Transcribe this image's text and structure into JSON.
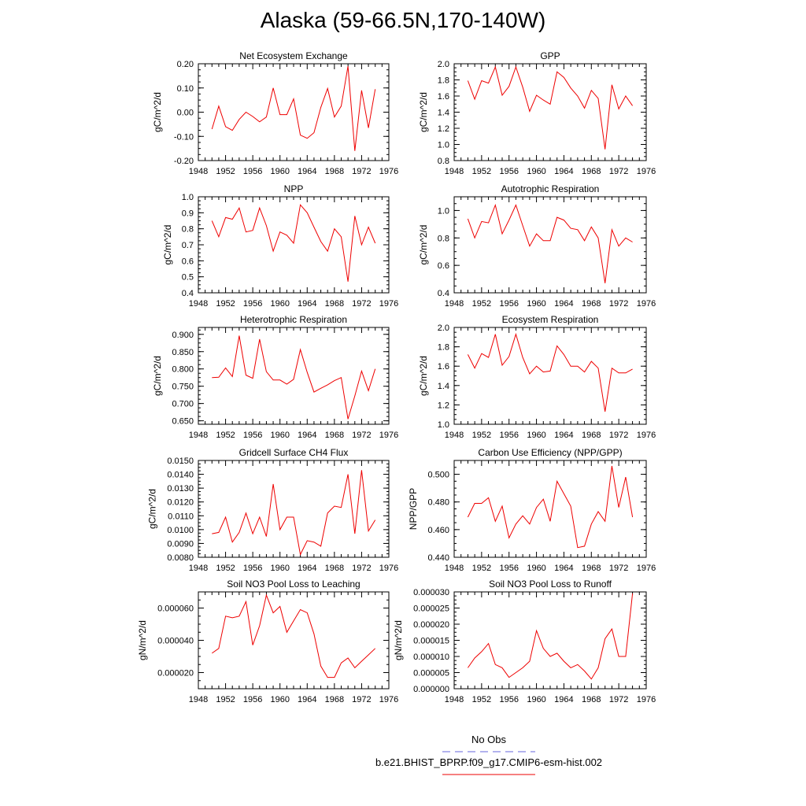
{
  "figure": {
    "title": "Alaska (59-66.5N,170-140W)"
  },
  "legend": {
    "items": [
      {
        "label": "No Obs",
        "color": "#6666dd",
        "style": "dashed"
      },
      {
        "label": "b.e21.BHIST_BPRP.f09_g17.CMIP6-esm-hist.002",
        "color": "#ee0000",
        "style": "solid"
      }
    ]
  },
  "chart_data": [
    {
      "type": "line",
      "title": "Net Ecosystem Exchange",
      "xlabel": "",
      "ylabel": "gC/m^2/d",
      "xlim": [
        1948,
        1976
      ],
      "ylim": [
        -0.2,
        0.2
      ],
      "xticks": [
        "1948",
        "1952",
        "1956",
        "1960",
        "1964",
        "1968",
        "1972",
        "1976"
      ],
      "yticks": [
        "-0.20",
        "-0.10",
        "0.00",
        "0.10",
        "0.20"
      ],
      "ytick_values": [
        -0.2,
        -0.1,
        0,
        0.1,
        0.2
      ],
      "x": [
        1950,
        1951,
        1952,
        1953,
        1954,
        1955,
        1956,
        1957,
        1958,
        1959,
        1960,
        1961,
        1962,
        1963,
        1964,
        1965,
        1966,
        1967,
        1968,
        1969,
        1970,
        1971,
        1972,
        1973,
        1974
      ],
      "series": [
        {
          "values": [
            -0.07,
            0.025,
            -0.06,
            -0.075,
            -0.03,
            0.0,
            -0.018,
            -0.04,
            -0.02,
            0.1,
            -0.01,
            -0.01,
            0.055,
            -0.095,
            -0.108,
            -0.085,
            0.02,
            0.098,
            -0.02,
            0.025,
            0.19,
            -0.16,
            0.09,
            -0.065,
            0.095
          ],
          "color": "#ee0000"
        }
      ]
    },
    {
      "type": "line",
      "title": "GPP",
      "xlabel": "",
      "ylabel": "gC/m^2/d",
      "xlim": [
        1948,
        1976
      ],
      "ylim": [
        0.8,
        2.0
      ],
      "xticks": [
        "1948",
        "1952",
        "1956",
        "1960",
        "1964",
        "1968",
        "1972",
        "1976"
      ],
      "yticks": [
        "0.8",
        "1.0",
        "1.2",
        "1.4",
        "1.6",
        "1.8",
        "2.0"
      ],
      "ytick_values": [
        0.8,
        1.0,
        1.2,
        1.4,
        1.6,
        1.8,
        2.0
      ],
      "x": [
        1950,
        1951,
        1952,
        1953,
        1954,
        1955,
        1956,
        1957,
        1958,
        1959,
        1960,
        1961,
        1962,
        1963,
        1964,
        1965,
        1966,
        1967,
        1968,
        1969,
        1970,
        1971,
        1972,
        1973,
        1974
      ],
      "series": [
        {
          "values": [
            1.79,
            1.56,
            1.79,
            1.76,
            1.96,
            1.61,
            1.72,
            1.96,
            1.71,
            1.41,
            1.61,
            1.55,
            1.5,
            1.9,
            1.83,
            1.7,
            1.6,
            1.45,
            1.67,
            1.57,
            0.94,
            1.74,
            1.44,
            1.6,
            1.48
          ],
          "color": "#ee0000"
        }
      ]
    },
    {
      "type": "line",
      "title": "NPP",
      "xlabel": "",
      "ylabel": "gC/m^2/d",
      "xlim": [
        1948,
        1976
      ],
      "ylim": [
        0.4,
        1.0
      ],
      "xticks": [
        "1948",
        "1952",
        "1956",
        "1960",
        "1964",
        "1968",
        "1972",
        "1976"
      ],
      "yticks": [
        "0.4",
        "0.5",
        "0.6",
        "0.7",
        "0.8",
        "0.9",
        "1.0"
      ],
      "ytick_values": [
        0.4,
        0.5,
        0.6,
        0.7,
        0.8,
        0.9,
        1.0
      ],
      "x": [
        1950,
        1951,
        1952,
        1953,
        1954,
        1955,
        1956,
        1957,
        1958,
        1959,
        1960,
        1961,
        1962,
        1963,
        1964,
        1965,
        1966,
        1967,
        1968,
        1969,
        1970,
        1971,
        1972,
        1973,
        1974
      ],
      "series": [
        {
          "values": [
            0.85,
            0.75,
            0.87,
            0.86,
            0.93,
            0.78,
            0.79,
            0.93,
            0.82,
            0.66,
            0.78,
            0.76,
            0.71,
            0.95,
            0.9,
            0.81,
            0.72,
            0.66,
            0.8,
            0.75,
            0.47,
            0.88,
            0.7,
            0.81,
            0.71
          ],
          "color": "#ee0000"
        }
      ]
    },
    {
      "type": "line",
      "title": "Autotrophic Respiration",
      "xlabel": "",
      "ylabel": "gC/m^2/d",
      "xlim": [
        1948,
        1976
      ],
      "ylim": [
        0.4,
        1.1
      ],
      "xticks": [
        "1948",
        "1952",
        "1956",
        "1960",
        "1964",
        "1968",
        "1972",
        "1976"
      ],
      "yticks": [
        "0.4",
        "0.6",
        "0.8",
        "1.0"
      ],
      "ytick_values": [
        0.4,
        0.6,
        0.8,
        1.0
      ],
      "x": [
        1950,
        1951,
        1952,
        1953,
        1954,
        1955,
        1956,
        1957,
        1958,
        1959,
        1960,
        1961,
        1962,
        1963,
        1964,
        1965,
        1966,
        1967,
        1968,
        1969,
        1970,
        1971,
        1972,
        1973,
        1974
      ],
      "series": [
        {
          "values": [
            0.94,
            0.8,
            0.92,
            0.91,
            1.04,
            0.83,
            0.93,
            1.04,
            0.89,
            0.74,
            0.83,
            0.78,
            0.78,
            0.95,
            0.93,
            0.87,
            0.86,
            0.78,
            0.88,
            0.8,
            0.47,
            0.86,
            0.74,
            0.8,
            0.77
          ],
          "color": "#ee0000"
        }
      ]
    },
    {
      "type": "line",
      "title": "Heterotrophic Respiration",
      "xlabel": "",
      "ylabel": "gC/m^2/d",
      "xlim": [
        1948,
        1976
      ],
      "ylim": [
        0.64,
        0.92
      ],
      "xticks": [
        "1948",
        "1952",
        "1956",
        "1960",
        "1964",
        "1968",
        "1972",
        "1976"
      ],
      "yticks": [
        "0.650",
        "0.700",
        "0.750",
        "0.800",
        "0.850",
        "0.900"
      ],
      "ytick_values": [
        0.65,
        0.7,
        0.75,
        0.8,
        0.85,
        0.9
      ],
      "x": [
        1950,
        1951,
        1952,
        1953,
        1954,
        1955,
        1956,
        1957,
        1958,
        1959,
        1960,
        1961,
        1962,
        1963,
        1964,
        1965,
        1966,
        1967,
        1968,
        1969,
        1970,
        1971,
        1972,
        1973,
        1974
      ],
      "series": [
        {
          "values": [
            0.775,
            0.776,
            0.803,
            0.778,
            0.896,
            0.782,
            0.773,
            0.886,
            0.792,
            0.768,
            0.768,
            0.756,
            0.77,
            0.856,
            0.79,
            0.733,
            0.744,
            0.754,
            0.766,
            0.775,
            0.655,
            0.722,
            0.794,
            0.737,
            0.8
          ],
          "color": "#ee0000"
        }
      ]
    },
    {
      "type": "line",
      "title": "Ecosystem Respiration",
      "xlabel": "",
      "ylabel": "gC/m^2/d",
      "xlim": [
        1948,
        1976
      ],
      "ylim": [
        1.0,
        2.0
      ],
      "xticks": [
        "1948",
        "1952",
        "1956",
        "1960",
        "1964",
        "1968",
        "1972",
        "1976"
      ],
      "yticks": [
        "1.0",
        "1.2",
        "1.4",
        "1.6",
        "1.8",
        "2.0"
      ],
      "ytick_values": [
        1.0,
        1.2,
        1.4,
        1.6,
        1.8,
        2.0
      ],
      "x": [
        1950,
        1951,
        1952,
        1953,
        1954,
        1955,
        1956,
        1957,
        1958,
        1959,
        1960,
        1961,
        1962,
        1963,
        1964,
        1965,
        1966,
        1967,
        1968,
        1969,
        1970,
        1971,
        1972,
        1973,
        1974
      ],
      "series": [
        {
          "values": [
            1.72,
            1.58,
            1.73,
            1.69,
            1.93,
            1.61,
            1.7,
            1.93,
            1.69,
            1.52,
            1.6,
            1.54,
            1.55,
            1.81,
            1.72,
            1.6,
            1.6,
            1.54,
            1.65,
            1.58,
            1.13,
            1.58,
            1.53,
            1.53,
            1.57
          ],
          "color": "#ee0000"
        }
      ]
    },
    {
      "type": "line",
      "title": "Gridcell Surface CH4 Flux",
      "xlabel": "",
      "ylabel": "gC/m^2/d",
      "xlim": [
        1948,
        1976
      ],
      "ylim": [
        0.008,
        0.015
      ],
      "xticks": [
        "1948",
        "1952",
        "1956",
        "1960",
        "1964",
        "1968",
        "1972",
        "1976"
      ],
      "yticks": [
        "0.0080",
        "0.0090",
        "0.0100",
        "0.0110",
        "0.0120",
        "0.0130",
        "0.0140",
        "0.0150"
      ],
      "ytick_values": [
        0.008,
        0.009,
        0.01,
        0.011,
        0.012,
        0.013,
        0.014,
        0.015
      ],
      "x": [
        1950,
        1951,
        1952,
        1953,
        1954,
        1955,
        1956,
        1957,
        1958,
        1959,
        1960,
        1961,
        1962,
        1963,
        1964,
        1965,
        1966,
        1967,
        1968,
        1969,
        1970,
        1971,
        1972,
        1973,
        1974
      ],
      "series": [
        {
          "values": [
            0.0097,
            0.0098,
            0.0109,
            0.0091,
            0.0098,
            0.0112,
            0.0097,
            0.0109,
            0.0095,
            0.0133,
            0.01,
            0.0109,
            0.0109,
            0.0082,
            0.0092,
            0.0091,
            0.0088,
            0.0112,
            0.0117,
            0.0116,
            0.014,
            0.0097,
            0.0143,
            0.0099,
            0.0107
          ],
          "color": "#ee0000"
        }
      ]
    },
    {
      "type": "line",
      "title": "Carbon Use Efficiency (NPP/GPP)",
      "xlabel": "",
      "ylabel": "NPP/GPP",
      "xlim": [
        1948,
        1976
      ],
      "ylim": [
        0.44,
        0.51
      ],
      "xticks": [
        "1948",
        "1952",
        "1956",
        "1960",
        "1964",
        "1968",
        "1972",
        "1976"
      ],
      "yticks": [
        "0.440",
        "0.460",
        "0.480",
        "0.500"
      ],
      "ytick_values": [
        0.44,
        0.46,
        0.48,
        0.5
      ],
      "x": [
        1950,
        1951,
        1952,
        1953,
        1954,
        1955,
        1956,
        1957,
        1958,
        1959,
        1960,
        1961,
        1962,
        1963,
        1964,
        1965,
        1966,
        1967,
        1968,
        1969,
        1970,
        1971,
        1972,
        1973,
        1974
      ],
      "series": [
        {
          "values": [
            0.469,
            0.479,
            0.479,
            0.483,
            0.466,
            0.477,
            0.454,
            0.464,
            0.47,
            0.464,
            0.476,
            0.482,
            0.466,
            0.495,
            0.486,
            0.477,
            0.447,
            0.448,
            0.464,
            0.473,
            0.466,
            0.506,
            0.476,
            0.498,
            0.469
          ],
          "color": "#ee0000"
        }
      ]
    },
    {
      "type": "line",
      "title": "Soil NO3 Pool Loss to Leaching",
      "xlabel": "",
      "ylabel": "gN/m^2/d",
      "xlim": [
        1948,
        1976
      ],
      "ylim": [
        1e-05,
        7e-05
      ],
      "xticks": [
        "1948",
        "1952",
        "1956",
        "1960",
        "1964",
        "1968",
        "1972",
        "1976"
      ],
      "yticks": [
        "0.000020",
        "0.000040",
        "0.000060"
      ],
      "ytick_values": [
        2e-05,
        4e-05,
        6e-05
      ],
      "x": [
        1950,
        1951,
        1952,
        1953,
        1954,
        1955,
        1956,
        1957,
        1958,
        1959,
        1960,
        1961,
        1962,
        1963,
        1964,
        1965,
        1966,
        1967,
        1968,
        1969,
        1970,
        1971,
        1972,
        1973,
        1974
      ],
      "series": [
        {
          "values": [
            3.2e-05,
            3.5e-05,
            5.5e-05,
            5.4e-05,
            5.5e-05,
            6.4e-05,
            3.7e-05,
            4.9e-05,
            6.8e-05,
            5.7e-05,
            6.1e-05,
            4.5e-05,
            5.2e-05,
            5.9e-05,
            5.7e-05,
            4.4e-05,
            2.4e-05,
            1.7e-05,
            1.7e-05,
            2.6e-05,
            2.9e-05,
            2.3e-05,
            2.7e-05,
            3.1e-05,
            3.5e-05
          ],
          "color": "#ee0000"
        }
      ]
    },
    {
      "type": "line",
      "title": "Soil NO3 Pool Loss to Runoff",
      "xlabel": "",
      "ylabel": "gN/m^2/d",
      "xlim": [
        1948,
        1976
      ],
      "ylim": [
        0,
        3e-05
      ],
      "xticks": [
        "1948",
        "1952",
        "1956",
        "1960",
        "1964",
        "1968",
        "1972",
        "1976"
      ],
      "yticks": [
        "0.000000",
        "0.000005",
        "0.000010",
        "0.000015",
        "0.000020",
        "0.000025",
        "0.000030"
      ],
      "ytick_values": [
        0,
        5e-06,
        1e-05,
        1.5e-05,
        2e-05,
        2.5e-05,
        3e-05
      ],
      "x": [
        1950,
        1951,
        1952,
        1953,
        1954,
        1955,
        1956,
        1957,
        1958,
        1959,
        1960,
        1961,
        1962,
        1963,
        1964,
        1965,
        1966,
        1967,
        1968,
        1969,
        1970,
        1971,
        1972,
        1973,
        1974
      ],
      "series": [
        {
          "values": [
            6.5e-06,
            9.5e-06,
            1.15e-05,
            1.4e-05,
            7.5e-06,
            6.5e-06,
            3.5e-06,
            5e-06,
            6.5e-06,
            8.5e-06,
            1.8e-05,
            1.25e-05,
            1e-05,
            1.1e-05,
            8.5e-06,
            6.5e-06,
            7.5e-06,
            5.5e-06,
            3e-06,
            6.5e-06,
            1.55e-05,
            1.85e-05,
            1e-05,
            1e-05,
            2.95e-05
          ],
          "color": "#ee0000"
        }
      ]
    }
  ]
}
